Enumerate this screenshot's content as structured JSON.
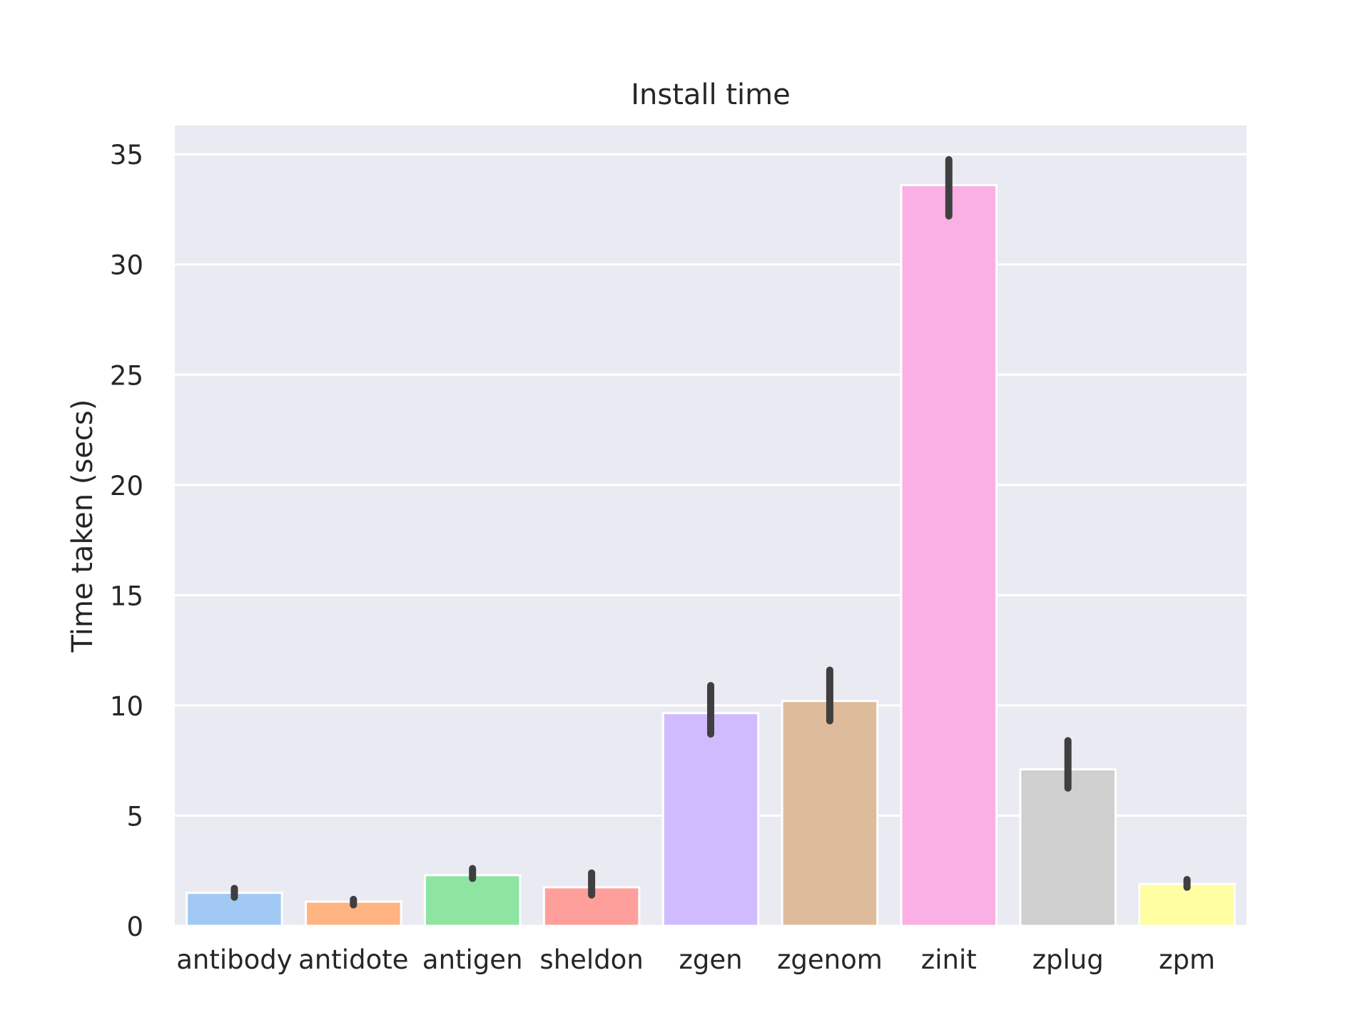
{
  "chart_data": {
    "type": "bar",
    "title": "Install time",
    "xlabel": "",
    "ylabel": "Time taken (secs)",
    "categories": [
      "antibody",
      "antidote",
      "antigen",
      "sheldon",
      "zgen",
      "zgenom",
      "zinit",
      "zplug",
      "zpm"
    ],
    "values": [
      1.5,
      1.1,
      2.3,
      1.75,
      9.65,
      10.2,
      33.6,
      7.1,
      1.9
    ],
    "error_low": [
      1.3,
      0.95,
      2.15,
      1.4,
      8.7,
      9.3,
      32.2,
      6.25,
      1.75
    ],
    "error_high": [
      1.7,
      1.2,
      2.6,
      2.4,
      10.9,
      11.6,
      34.75,
      8.4,
      2.1
    ],
    "colors": [
      "#a1c9f4",
      "#ffb482",
      "#8de5a1",
      "#ff9f9b",
      "#d0bbff",
      "#debb9b",
      "#fab0e4",
      "#cfcfcf",
      "#fffea3"
    ],
    "yticks": [
      "0",
      "5",
      "10",
      "15",
      "20",
      "25",
      "30",
      "35"
    ],
    "ylim": [
      0,
      36.3
    ],
    "grid": true,
    "style": {
      "background": "#eaeaf2",
      "gridline": "#ffffff",
      "errorbar": "#3f3f3f",
      "text": "#262626"
    }
  }
}
